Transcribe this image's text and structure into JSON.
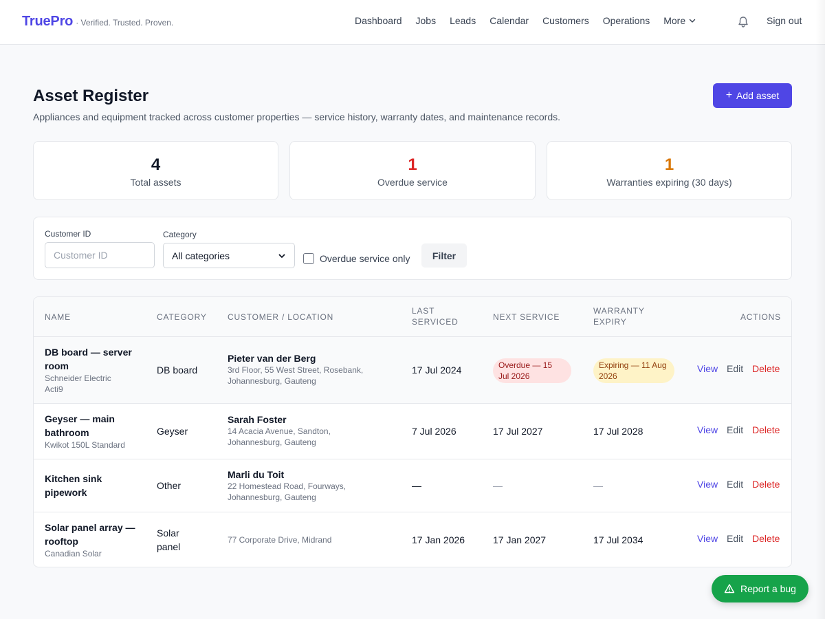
{
  "brand": {
    "name": "TruePro",
    "tagline": "· Verified. Trusted. Proven."
  },
  "nav": {
    "items": [
      "Dashboard",
      "Jobs",
      "Leads",
      "Calendar",
      "Customers",
      "Operations"
    ],
    "more_label": "More",
    "sign_out": "Sign out"
  },
  "page": {
    "title": "Asset Register",
    "subtitle": "Appliances and equipment tracked across customer properties — service history, warranty dates, and maintenance records.",
    "add_button": "Add asset"
  },
  "stats": [
    {
      "value": "4",
      "label": "Total assets",
      "color": "#111827"
    },
    {
      "value": "1",
      "label": "Overdue service",
      "color": "#dc2626"
    },
    {
      "value": "1",
      "label": "Warranties expiring (30 days)",
      "color": "#d97706"
    }
  ],
  "filter": {
    "customer_label": "Customer ID",
    "customer_placeholder": "Customer ID",
    "category_label": "Category",
    "category_selected": "All categories",
    "overdue_label": "Overdue service only",
    "filter_button": "Filter"
  },
  "table": {
    "headers": {
      "name": "NAME",
      "category": "CATEGORY",
      "customer": "CUSTOMER / LOCATION",
      "last_1": "LAST",
      "last_2": "SERVICED",
      "next": "NEXT SERVICE",
      "warranty_1": "WARRANTY",
      "warranty_2": "EXPIRY",
      "actions": "ACTIONS"
    },
    "rows": [
      {
        "name_1": "DB board — server",
        "name_2": "room",
        "model_1": "Schneider Electric",
        "model_2": "Acti9",
        "category": "DB board",
        "customer": "Pieter van der Berg",
        "address_1": "3rd Floor, 55 West Street, Rosebank,",
        "address_2": "Johannesburg, Gauteng",
        "last_serviced": "17 Jul 2024",
        "next_1": "Overdue — 15",
        "next_2": "Jul 2026",
        "warranty_1": "Expiring — 11 Aug",
        "warranty_2": "2026",
        "view": "View",
        "edit": "Edit",
        "delete": "Delete"
      },
      {
        "name_1": "Geyser — main",
        "name_2": "bathroom",
        "model": "Kwikot 150L Standard",
        "category": "Geyser",
        "customer": "Sarah Foster",
        "address_1": "14 Acacia Avenue, Sandton,",
        "address_2": "Johannesburg, Gauteng",
        "last_serviced": "7 Jul 2026",
        "next_service": "17 Jul 2027",
        "warranty": "17 Jul 2028",
        "view": "View",
        "edit": "Edit",
        "delete": "Delete"
      },
      {
        "name_1": "Kitchen sink",
        "name_2": "pipework",
        "category": "Other",
        "customer": "Marli du Toit",
        "address_1": "22 Homestead Road, Fourways,",
        "address_2": "Johannesburg, Gauteng",
        "last_serviced": "—",
        "next_service": "—",
        "warranty": "—",
        "view": "View",
        "edit": "Edit",
        "delete": "Delete"
      },
      {
        "name_1": "Solar panel array —",
        "name_2": "rooftop",
        "model": "Canadian Solar",
        "category_1": "Solar",
        "category_2": "panel",
        "address": "77 Corporate Drive, Midrand",
        "last_serviced": "17 Jan 2026",
        "next_service": "17 Jan 2027",
        "warranty": "17 Jul 2034",
        "view": "View",
        "edit": "Edit",
        "delete": "Delete"
      }
    ]
  },
  "bug_button": "Report a bug"
}
